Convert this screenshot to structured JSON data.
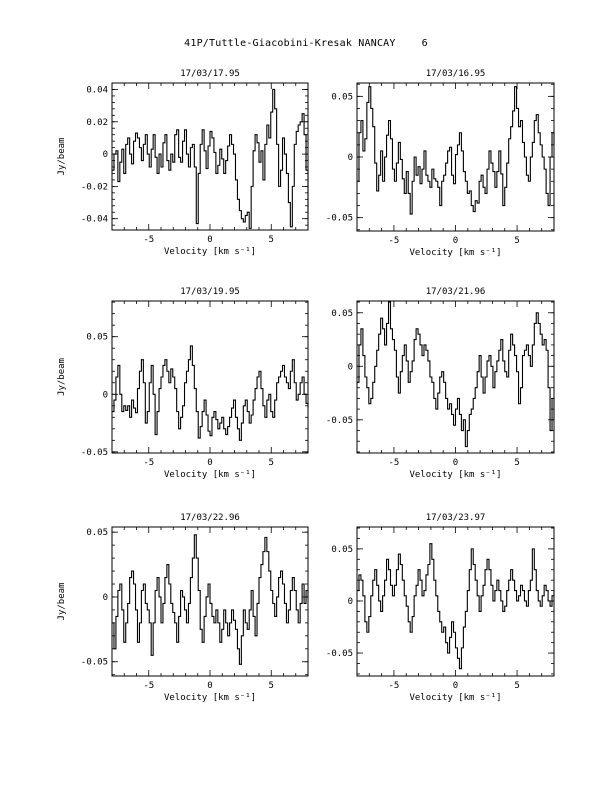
{
  "page": {
    "title": "41P/Tuttle-Giacobini-Kresak  NANCAY",
    "number": "6"
  },
  "chart_data": [
    {
      "type": "line",
      "title": "17/03/17.95",
      "xlabel": "Velocity [km s⁻¹]",
      "ylabel": "Jy/beam",
      "xlim": [
        -8,
        8
      ],
      "ylim": [
        -0.047,
        0.044
      ],
      "xticks": [
        -5,
        0,
        5
      ],
      "xtick_labels": [
        "-5",
        "0",
        "5"
      ],
      "yticks": [
        -0.04,
        -0.02,
        0,
        0.02,
        0.04
      ],
      "ytick_labels": [
        "-0.04",
        "-0.02",
        "0",
        "0.02",
        "0.04"
      ],
      "x_start": -8,
      "x_step": 0.16,
      "values": [
        -0.01,
        0.0,
        0.002,
        -0.017,
        -0.005,
        0.003,
        -0.012,
        0.006,
        0.01,
        0.0,
        -0.006,
        0.008,
        0.013,
        0.01,
        0.004,
        -0.004,
        0.006,
        0.012,
        0.0,
        -0.008,
        0.003,
        0.012,
        -0.002,
        -0.012,
        0.0,
        -0.008,
        0.007,
        0.012,
        -0.004,
        -0.01,
        0.0,
        -0.005,
        0.012,
        0.015,
        -0.002,
        -0.005,
        0.008,
        0.015,
        0.0,
        -0.008,
        0.004,
        0.006,
        -0.008,
        -0.043,
        -0.012,
        0.006,
        0.015,
        0.002,
        -0.009,
        0.005,
        0.014,
        0.01,
        0.001,
        -0.012,
        -0.007,
        0.003,
        -0.003,
        -0.012,
        -0.004,
        0.005,
        0.012,
        0.006,
        0.0,
        -0.016,
        -0.028,
        -0.035,
        -0.04,
        -0.042,
        -0.038,
        -0.036,
        -0.046,
        -0.02,
        0.002,
        0.012,
        0.007,
        -0.005,
        0.002,
        -0.016,
        0.006,
        0.018,
        0.01,
        0.026,
        0.04,
        0.028,
        0.006,
        -0.02,
        -0.01,
        0.01,
        0.0,
        -0.012,
        -0.03,
        -0.045,
        -0.02,
        0.006,
        0.014,
        0.018,
        0.02,
        0.025,
        0.012,
        -0.01,
        -0.04
      ]
    },
    {
      "type": "line",
      "title": "17/03/16.95",
      "xlabel": "Velocity [km s⁻¹]",
      "ylabel": "",
      "xlim": [
        -8,
        8
      ],
      "ylim": [
        -0.061,
        0.061
      ],
      "xticks": [
        -5,
        0,
        5
      ],
      "xtick_labels": [
        "-5",
        "0",
        "5"
      ],
      "yticks": [
        -0.05,
        0,
        0.05
      ],
      "ytick_labels": [
        "-0.05",
        "0",
        "0.05"
      ],
      "x_start": -8,
      "x_step": 0.16,
      "values": [
        -0.02,
        0.02,
        0.03,
        0.005,
        0.015,
        0.045,
        0.058,
        0.04,
        0.025,
        -0.005,
        -0.028,
        -0.015,
        0.005,
        -0.02,
        0.0,
        0.018,
        0.03,
        0.015,
        -0.01,
        -0.02,
        -0.005,
        0.012,
        -0.002,
        -0.018,
        -0.03,
        -0.012,
        -0.03,
        -0.047,
        -0.02,
        0.0,
        -0.015,
        -0.008,
        -0.022,
        -0.01,
        0.005,
        -0.015,
        -0.02,
        -0.025,
        -0.01,
        -0.018,
        -0.02,
        -0.025,
        -0.04,
        -0.02,
        -0.015,
        -0.005,
        0.005,
        0.008,
        -0.015,
        -0.022,
        0.002,
        0.01,
        0.02,
        0.005,
        -0.012,
        -0.02,
        -0.03,
        -0.028,
        -0.04,
        -0.045,
        -0.036,
        -0.038,
        -0.02,
        -0.015,
        -0.025,
        -0.03,
        -0.01,
        0.005,
        -0.005,
        -0.012,
        -0.025,
        -0.012,
        0.005,
        -0.014,
        -0.04,
        -0.025,
        -0.005,
        0.015,
        0.025,
        0.038,
        0.058,
        0.04,
        0.025,
        0.03,
        0.012,
        0.0,
        -0.015,
        -0.02,
        0.0,
        0.012,
        0.03,
        0.035,
        0.02,
        0.01,
        0.0,
        -0.01,
        -0.03,
        -0.04,
        0.0,
        0.02,
        0.01
      ]
    },
    {
      "type": "line",
      "title": "17/03/19.95",
      "xlabel": "Velocity [km s⁻¹]",
      "ylabel": "Jy/beam",
      "xlim": [
        -8,
        8
      ],
      "ylim": [
        -0.051,
        0.081
      ],
      "xticks": [
        -5,
        0,
        5
      ],
      "xtick_labels": [
        "-5",
        "0",
        "5"
      ],
      "yticks": [
        -0.05,
        0,
        0.05
      ],
      "ytick_labels": [
        "-0.05",
        "0",
        "0.05"
      ],
      "x_start": -8,
      "x_step": 0.16,
      "values": [
        -0.015,
        -0.005,
        0.015,
        0.025,
        0.0,
        -0.015,
        -0.01,
        -0.014,
        -0.01,
        -0.02,
        -0.005,
        -0.012,
        -0.016,
        0.005,
        0.02,
        0.03,
        0.01,
        -0.025,
        -0.015,
        0.01,
        0.025,
        0.0,
        -0.035,
        -0.015,
        0.005,
        0.015,
        0.025,
        0.03,
        0.02,
        0.01,
        0.022,
        0.015,
        0.005,
        -0.015,
        -0.03,
        -0.02,
        -0.01,
        0.01,
        0.02,
        0.03,
        0.042,
        0.025,
        0.005,
        -0.015,
        -0.038,
        -0.028,
        -0.015,
        -0.005,
        -0.018,
        -0.032,
        -0.036,
        -0.02,
        -0.015,
        -0.022,
        -0.03,
        -0.025,
        -0.02,
        -0.03,
        -0.035,
        -0.028,
        -0.02,
        -0.012,
        -0.005,
        -0.02,
        -0.03,
        -0.04,
        -0.025,
        -0.01,
        -0.005,
        -0.015,
        -0.025,
        -0.018,
        -0.005,
        0.005,
        0.015,
        0.02,
        0.005,
        -0.01,
        -0.02,
        -0.005,
        0.0,
        -0.015,
        -0.02,
        -0.005,
        0.01,
        0.015,
        0.02,
        0.025,
        0.015,
        0.01,
        0.005,
        0.02,
        0.03,
        0.01,
        -0.005,
        0.0,
        0.01,
        0.015,
        0.0,
        -0.008,
        -0.012
      ]
    },
    {
      "type": "line",
      "title": "17/03/21.96",
      "xlabel": "Velocity [km s⁻¹]",
      "ylabel": "",
      "xlim": [
        -8,
        8
      ],
      "ylim": [
        -0.081,
        0.061
      ],
      "xticks": [
        -5,
        0,
        5
      ],
      "xtick_labels": [
        "-5",
        "0",
        "5"
      ],
      "yticks": [
        -0.05,
        0,
        0.05
      ],
      "ytick_labels": [
        "-0.05",
        "0",
        "0.05"
      ],
      "x_start": -8,
      "x_step": 0.16,
      "values": [
        -0.015,
        0.02,
        0.035,
        0.01,
        -0.01,
        -0.02,
        -0.035,
        -0.03,
        -0.015,
        0.0,
        0.015,
        0.03,
        0.045,
        0.035,
        0.02,
        0.04,
        0.06,
        0.035,
        0.025,
        0.015,
        -0.01,
        -0.025,
        -0.005,
        0.01,
        0.02,
        0.005,
        -0.015,
        -0.005,
        0.005,
        0.025,
        0.035,
        0.03,
        0.02,
        0.01,
        0.02,
        0.015,
        0.005,
        -0.01,
        -0.015,
        -0.03,
        -0.04,
        -0.025,
        -0.01,
        -0.005,
        -0.015,
        -0.03,
        -0.04,
        -0.035,
        -0.045,
        -0.055,
        -0.04,
        -0.03,
        -0.045,
        -0.06,
        -0.05,
        -0.075,
        -0.06,
        -0.045,
        -0.04,
        -0.03,
        -0.02,
        -0.005,
        0.01,
        -0.01,
        -0.025,
        -0.01,
        0.005,
        0.01,
        0.0,
        -0.02,
        -0.005,
        0.005,
        0.015,
        0.025,
        0.005,
        -0.005,
        -0.01,
        0.015,
        0.03,
        0.02,
        0.01,
        -0.005,
        -0.035,
        -0.02,
        0.01,
        0.015,
        0.02,
        0.01,
        0.0,
        0.02,
        0.04,
        0.05,
        0.04,
        0.03,
        0.02,
        0.025,
        0.015,
        -0.02,
        -0.06,
        -0.03,
        -0.05
      ]
    },
    {
      "type": "line",
      "title": "17/03/22.96",
      "xlabel": "Velocity [km s⁻¹]",
      "ylabel": "Jy/beam",
      "xlim": [
        -8,
        8
      ],
      "ylim": [
        -0.061,
        0.054
      ],
      "xticks": [
        -5,
        0,
        5
      ],
      "xtick_labels": [
        "-5",
        "0",
        "5"
      ],
      "yticks": [
        -0.05,
        0,
        0.05
      ],
      "ytick_labels": [
        "-0.05",
        "0",
        "0.05"
      ],
      "x_start": -8,
      "x_step": 0.16,
      "values": [
        -0.02,
        -0.04,
        -0.015,
        0.005,
        0.01,
        -0.01,
        -0.035,
        -0.02,
        -0.005,
        0.015,
        0.02,
        0.01,
        -0.01,
        -0.035,
        -0.02,
        0.005,
        0.01,
        -0.005,
        -0.01,
        -0.02,
        -0.045,
        -0.02,
        0.005,
        0.015,
        0.0,
        -0.02,
        -0.005,
        0.015,
        0.025,
        0.01,
        -0.005,
        -0.012,
        -0.02,
        -0.035,
        -0.015,
        0.005,
        0.0,
        -0.01,
        -0.02,
        -0.005,
        0.015,
        0.03,
        0.048,
        0.03,
        0.005,
        -0.025,
        -0.035,
        -0.015,
        0.0,
        0.01,
        -0.005,
        -0.015,
        -0.02,
        -0.01,
        -0.02,
        -0.035,
        -0.025,
        -0.01,
        -0.02,
        -0.03,
        -0.02,
        -0.01,
        -0.018,
        -0.025,
        -0.04,
        -0.052,
        -0.03,
        -0.01,
        -0.02,
        -0.025,
        -0.01,
        0.005,
        -0.015,
        -0.03,
        -0.005,
        0.015,
        0.025,
        0.035,
        0.046,
        0.035,
        0.02,
        0.005,
        -0.005,
        -0.015,
        0.0,
        0.015,
        0.02,
        0.01,
        -0.005,
        -0.02,
        -0.01,
        0.005,
        0.015,
        0.005,
        -0.01,
        -0.02,
        -0.005,
        0.01,
        -0.005,
        0.005,
        0.0
      ]
    },
    {
      "type": "line",
      "title": "17/03/23.97",
      "xlabel": "Velocity [km s⁻¹]",
      "ylabel": "",
      "xlim": [
        -8,
        8
      ],
      "ylim": [
        -0.072,
        0.071
      ],
      "xticks": [
        -5,
        0,
        5
      ],
      "xtick_labels": [
        "-5",
        "0",
        "5"
      ],
      "yticks": [
        -0.05,
        0,
        0.05
      ],
      "ytick_labels": [
        "-0.05",
        "0",
        "0.05"
      ],
      "x_start": -8,
      "x_step": 0.16,
      "values": [
        0.01,
        0.025,
        0.02,
        0.005,
        -0.02,
        -0.03,
        -0.015,
        0.005,
        0.02,
        0.03,
        0.015,
        0.0,
        -0.01,
        0.005,
        0.02,
        0.04,
        0.03,
        0.015,
        0.005,
        0.015,
        0.03,
        0.045,
        0.035,
        0.02,
        0.005,
        -0.005,
        -0.02,
        -0.03,
        -0.015,
        0.005,
        0.015,
        0.03,
        0.02,
        0.005,
        0.01,
        0.025,
        0.035,
        0.055,
        0.04,
        0.02,
        0.005,
        -0.01,
        -0.02,
        -0.03,
        -0.025,
        -0.04,
        -0.05,
        -0.035,
        -0.02,
        -0.03,
        -0.045,
        -0.055,
        -0.065,
        -0.045,
        -0.025,
        -0.01,
        0.01,
        0.03,
        0.05,
        0.035,
        0.02,
        0.005,
        -0.01,
        0.005,
        0.015,
        0.03,
        0.04,
        0.03,
        0.015,
        0.0,
        0.01,
        0.02,
        0.01,
        0.0,
        -0.01,
        -0.005,
        0.01,
        0.02,
        0.03,
        0.02,
        0.01,
        0.0,
        0.005,
        0.015,
        0.01,
        0.0,
        -0.005,
        0.01,
        0.02,
        0.05,
        0.03,
        0.01,
        0.0,
        -0.005,
        0.005,
        0.015,
        0.01,
        0.0,
        -0.005,
        0.005,
        0.01
      ]
    }
  ]
}
